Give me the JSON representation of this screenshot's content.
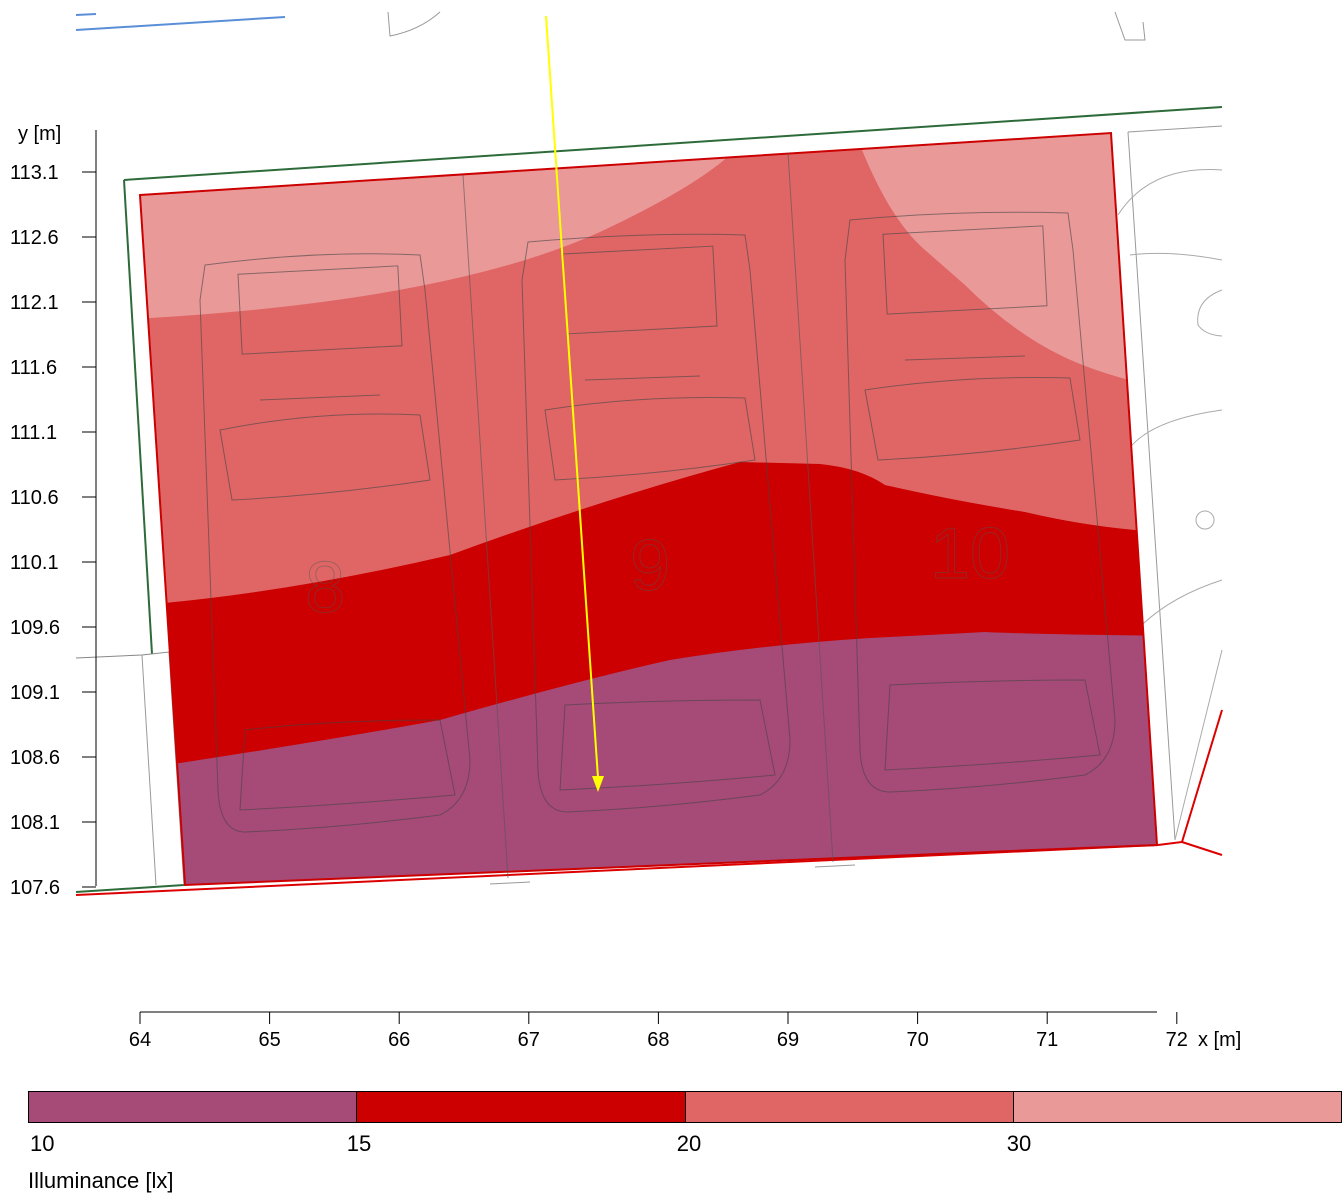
{
  "chart_data": {
    "type": "heatmap",
    "title": "",
    "xlabel": "x [m]",
    "ylabel": "y [m]",
    "x_ticks": [
      "64",
      "65",
      "66",
      "67",
      "68",
      "69",
      "70",
      "71",
      "72"
    ],
    "y_ticks": [
      "113.1",
      "112.6",
      "112.1",
      "111.6",
      "111.1",
      "110.6",
      "110.1",
      "109.6",
      "109.1",
      "108.6",
      "108.1",
      "107.6"
    ],
    "xlim": [
      64,
      72
    ],
    "ylim": [
      107.6,
      113.1
    ],
    "parking_spot_labels": [
      "8",
      "9",
      "10"
    ],
    "legend": {
      "title": "Illuminance [lx]",
      "thresholds": [
        "10",
        "15",
        "20",
        "30"
      ],
      "colors": [
        "#a64a78",
        "#cc0000",
        "#e06666",
        "#ea9999"
      ]
    },
    "iso_bands": [
      {
        "range": "10-15 lx",
        "color": "#a64a78",
        "upper_boundary_y": [
          108.85,
          108.9,
          109.05,
          109.3,
          109.45,
          109.5,
          109.55,
          109.6,
          109.55
        ]
      },
      {
        "range": "15-20 lx",
        "color": "#cc0000",
        "upper_boundary_y": [
          110.1,
          110.2,
          110.3,
          110.55,
          110.8,
          110.85,
          110.7,
          110.5,
          110.45
        ]
      },
      {
        "range": "20-30 lx",
        "color": "#e06666",
        "upper_boundary_y": [
          112.0,
          112.05,
          112.3,
          112.9,
          113.2,
          113.2,
          112.8,
          111.9,
          111.5
        ]
      },
      {
        "range": ">30 lx",
        "color": "#ea9999"
      }
    ]
  }
}
